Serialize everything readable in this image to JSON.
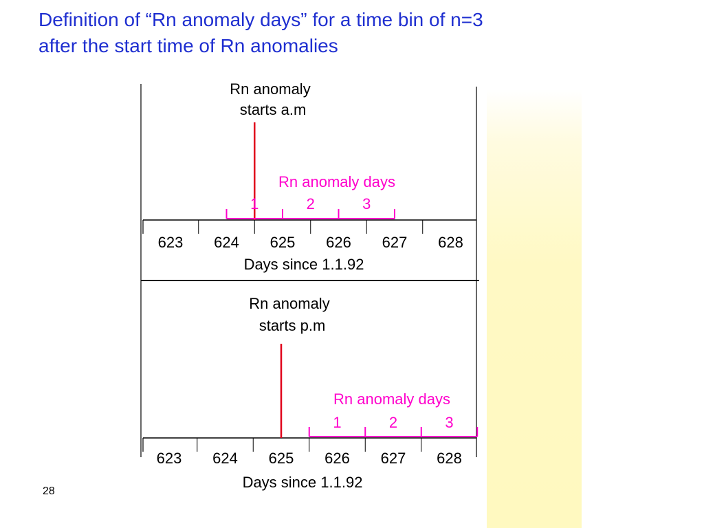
{
  "slide": {
    "title_line1": "Definition of “Rn anomaly days” for a time bin of n=3",
    "title_line2": "after the start time of Rn anomalies",
    "slide_number": "28",
    "colors": {
      "title": "#1f2fd0",
      "anomaly_line": "#e0001a",
      "anomaly_days": "#ff00cc",
      "axis": "#000000",
      "band": "#fff9c4"
    }
  },
  "panels": [
    {
      "label_line1": "Rn anomaly",
      "label_line2": "starts a.m",
      "anomaly_start_day": 624.5,
      "days_title": "Rn anomaly days",
      "day_numbers": [
        "1",
        "2",
        "3"
      ],
      "tick_labels": [
        "623",
        "624",
        "625",
        "626",
        "627",
        "628"
      ],
      "axis_label": "Days since 1.1.92"
    },
    {
      "label_line1": "Rn anomaly",
      "label_line2": "starts p.m",
      "anomaly_start_day": 625.0,
      "days_title": "Rn anomaly days",
      "day_numbers": [
        "1",
        "2",
        "3"
      ],
      "tick_labels": [
        "623",
        "624",
        "625",
        "626",
        "627",
        "628"
      ],
      "axis_label": "Days since 1.1.92"
    }
  ]
}
